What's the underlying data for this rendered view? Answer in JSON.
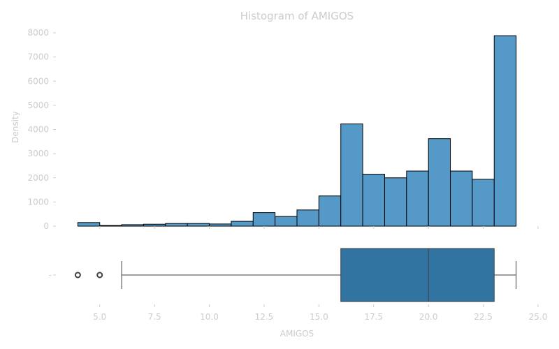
{
  "chart_data": [
    {
      "type": "histogram",
      "title": "Histogram of AMIGOS",
      "xlabel": "",
      "ylabel": "Density",
      "ylim": [
        0,
        8000
      ],
      "yticks": [
        0,
        1000,
        2000,
        3000,
        4000,
        5000,
        6000,
        7000,
        8000
      ],
      "xlim": [
        3.0,
        25.0
      ],
      "bin_width": 1,
      "bins": [
        {
          "start": 4,
          "end": 5,
          "value": 150
        },
        {
          "start": 5,
          "end": 6,
          "value": 30
        },
        {
          "start": 6,
          "end": 7,
          "value": 60
        },
        {
          "start": 7,
          "end": 8,
          "value": 80
        },
        {
          "start": 8,
          "end": 9,
          "value": 110
        },
        {
          "start": 9,
          "end": 10,
          "value": 110
        },
        {
          "start": 10,
          "end": 11,
          "value": 90
        },
        {
          "start": 11,
          "end": 12,
          "value": 200
        },
        {
          "start": 12,
          "end": 13,
          "value": 560
        },
        {
          "start": 13,
          "end": 14,
          "value": 400
        },
        {
          "start": 14,
          "end": 15,
          "value": 670
        },
        {
          "start": 15,
          "end": 16,
          "value": 1250
        },
        {
          "start": 16,
          "end": 17,
          "value": 4230
        },
        {
          "start": 17,
          "end": 18,
          "value": 2150
        },
        {
          "start": 18,
          "end": 19,
          "value": 2000
        },
        {
          "start": 19,
          "end": 20,
          "value": 2280
        },
        {
          "start": 20,
          "end": 21,
          "value": 3620
        },
        {
          "start": 21,
          "end": 22,
          "value": 2280
        },
        {
          "start": 22,
          "end": 23,
          "value": 1940
        },
        {
          "start": 23,
          "end": 24,
          "value": 7880
        }
      ],
      "color": "#5499c7"
    },
    {
      "type": "boxplot",
      "xlabel": "AMIGOS",
      "xlim": [
        3.0,
        25.0
      ],
      "xticks": [
        5.0,
        7.5,
        10.0,
        12.5,
        15.0,
        17.5,
        20.0,
        22.5,
        25.0
      ],
      "xtick_labels": [
        "5.0",
        "7.5",
        "10.0",
        "12.5",
        "15.0",
        "17.5",
        "20.0",
        "22.5",
        "25.0"
      ],
      "ytick_label": "-",
      "whisker_low": 6,
      "q1": 16,
      "median": 20,
      "q3": 23,
      "whisker_high": 24,
      "outliers": [
        4,
        5
      ],
      "color": "#3274a1"
    }
  ]
}
